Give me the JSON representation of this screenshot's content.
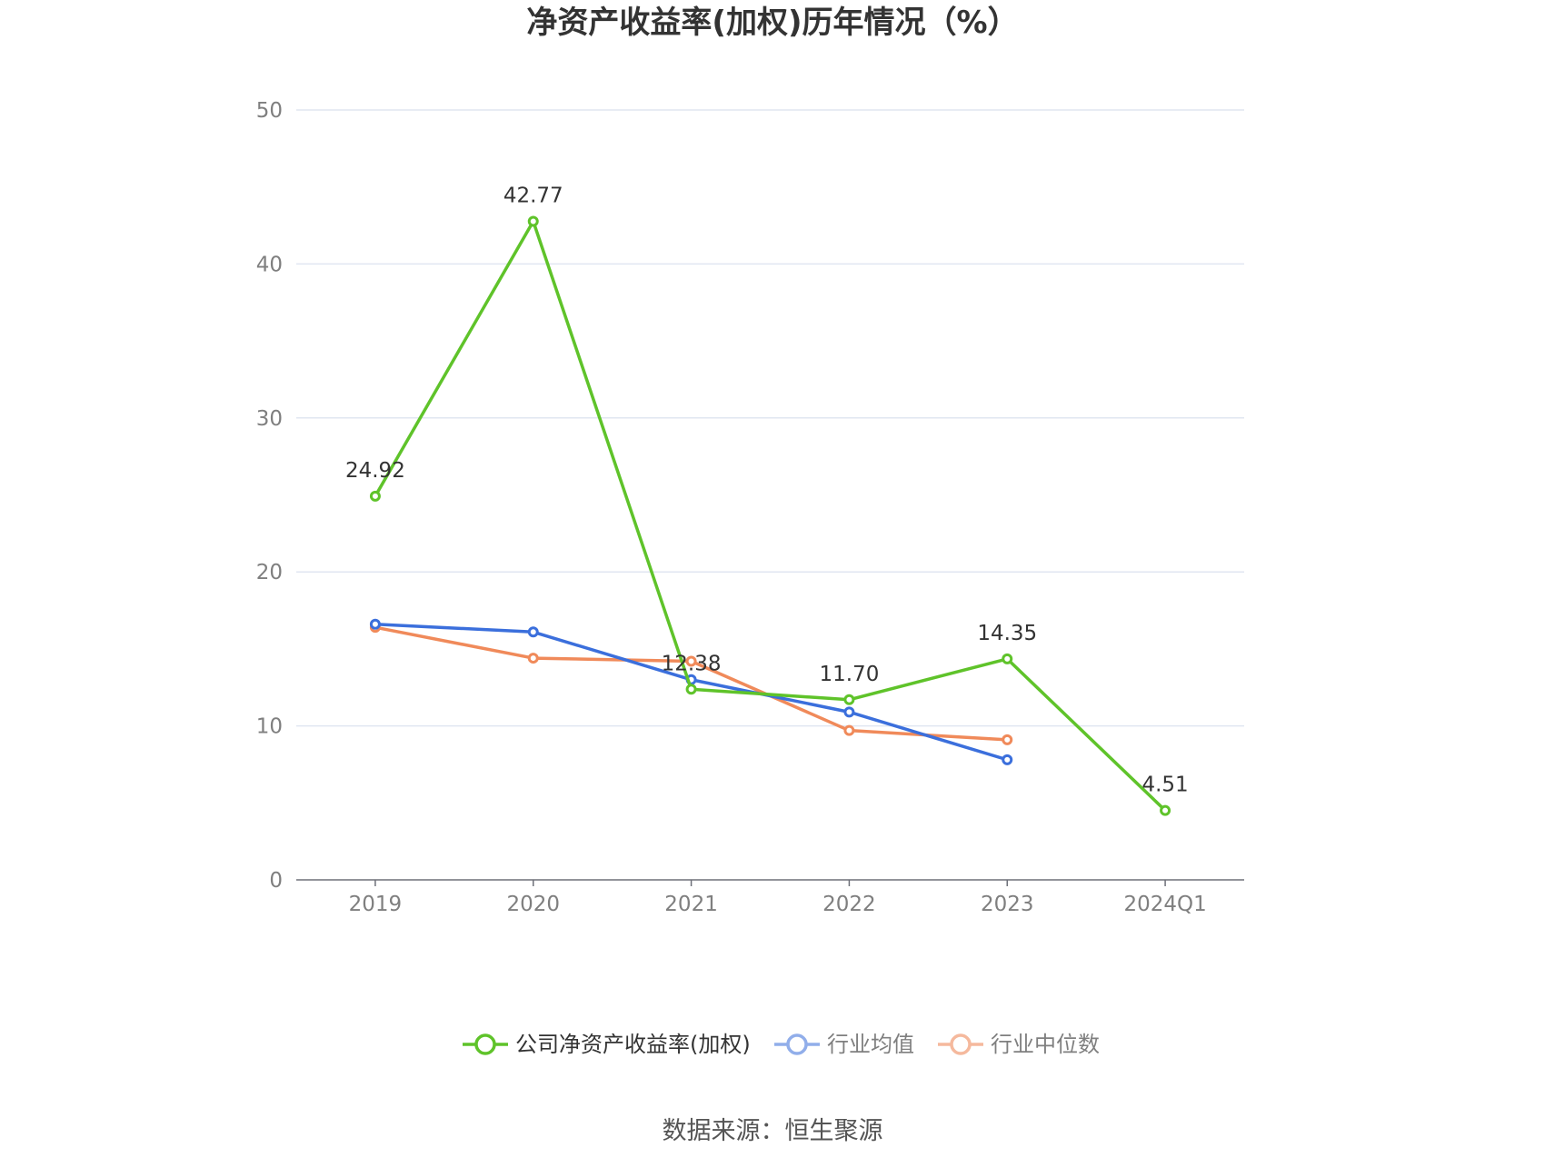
{
  "chart_data": {
    "type": "line",
    "title": "净资产收益率(加权)历年情况（%）",
    "categories": [
      "2019",
      "2020",
      "2021",
      "2022",
      "2023",
      "2024Q1"
    ],
    "ylim": [
      0,
      50
    ],
    "yticks": [
      0,
      10,
      20,
      30,
      40,
      50
    ],
    "grid": true,
    "legend_position": "bottom",
    "series": [
      {
        "name": "公司净资产收益率(加权)",
        "color": "#5fc32a",
        "values": [
          24.92,
          42.77,
          12.38,
          11.7,
          14.35,
          4.51
        ],
        "labels": [
          "24.92",
          "42.77",
          "12.38",
          "11.70",
          "14.35",
          "4.51"
        ]
      },
      {
        "name": "行业均值",
        "color": "#3b6fdc",
        "legend_color": "#91aeea",
        "values": [
          16.6,
          16.1,
          13.0,
          10.9,
          7.8,
          null
        ]
      },
      {
        "name": "行业中位数",
        "color": "#f08a5a",
        "legend_color": "#f5b99d",
        "values": [
          16.4,
          14.4,
          14.2,
          9.7,
          9.1,
          null
        ]
      }
    ]
  },
  "source": "数据来源：恒生聚源"
}
